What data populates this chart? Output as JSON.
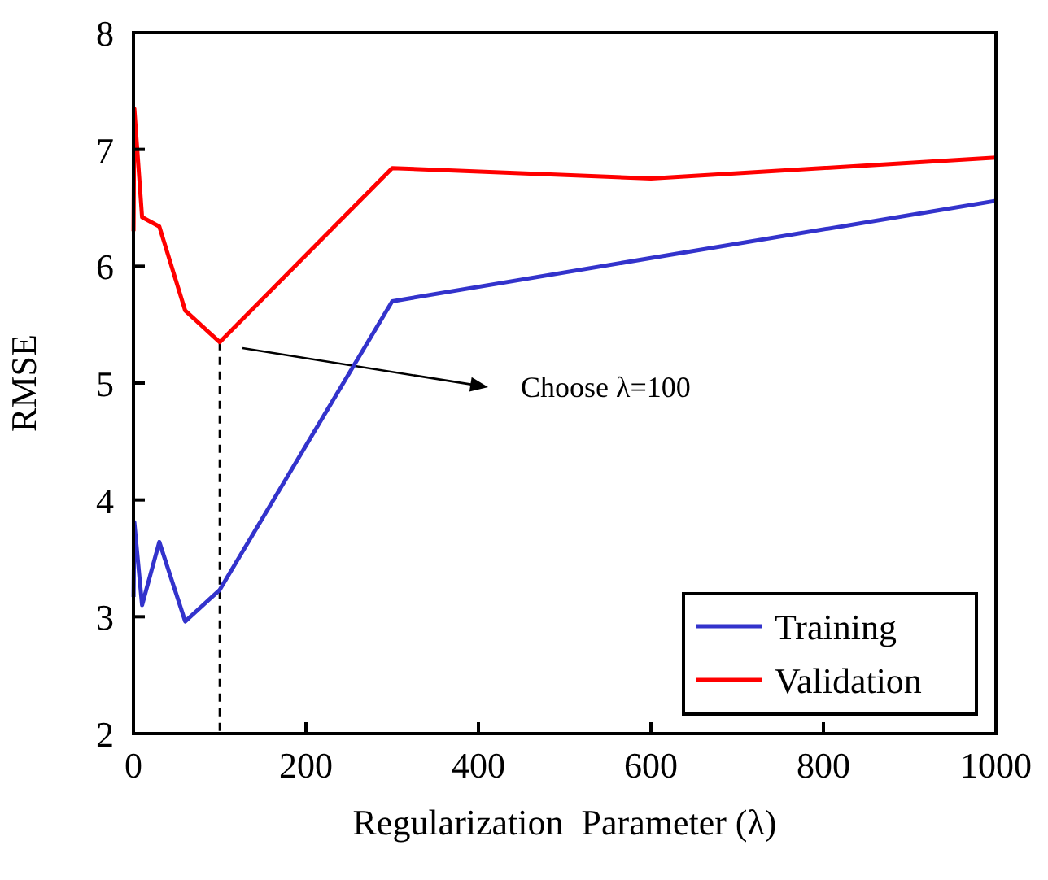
{
  "chart_data": {
    "type": "line",
    "xlabel": "Regularization  Parameter (λ)",
    "ylabel": "RMSE",
    "xlim": [
      0,
      1000
    ],
    "ylim": [
      2,
      8
    ],
    "xticks": [
      0,
      200,
      400,
      600,
      800,
      1000
    ],
    "yticks": [
      2,
      3,
      4,
      5,
      6,
      7,
      8
    ],
    "grid": false,
    "legend": "bottom right",
    "marker": "none",
    "line_style": "solid",
    "x": [
      0.1,
      1,
      10,
      30,
      60,
      100,
      300,
      600,
      1000
    ],
    "series": [
      {
        "name": "Training",
        "color": "#3333cc",
        "values": [
          3.17,
          3.81,
          3.1,
          3.64,
          2.96,
          3.23,
          5.7,
          6.07,
          6.56
        ]
      },
      {
        "name": "Validation",
        "color": "#ff0000",
        "values": [
          6.3,
          7.35,
          6.42,
          6.34,
          5.62,
          5.35,
          6.84,
          6.75,
          6.93
        ]
      }
    ],
    "ref_lines": [
      {
        "axis": "x",
        "value": 100,
        "line_style": "dashed",
        "color": "#000000"
      }
    ],
    "annotations": [
      "Choose λ=100"
    ]
  }
}
